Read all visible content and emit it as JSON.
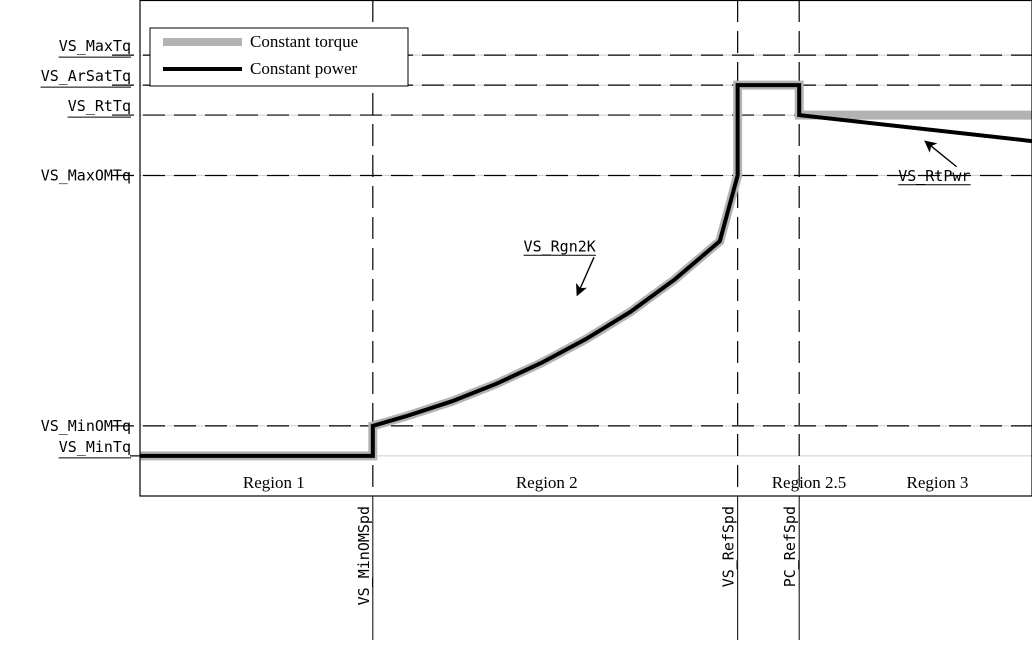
{
  "chart_data": {
    "type": "line",
    "title": "",
    "xlabel": "",
    "ylabel": "",
    "grid": false,
    "legend": {
      "placement": "top-left",
      "entries": [
        {
          "label": "Constant torque",
          "color": "#b3b3b3"
        },
        {
          "label": "Constant power",
          "color": "#000000"
        }
      ]
    },
    "y_levels": [
      {
        "key": "max_tq",
        "label": "VS_MaxTq",
        "value": 100,
        "dashed_line": true
      },
      {
        "key": "arsat_tq",
        "label": "VS_ArSatTq",
        "value": 93.2,
        "dashed_line": true
      },
      {
        "key": "rt_tq",
        "label": "VS_RtTq",
        "value": 86.4,
        "dashed_line": true
      },
      {
        "key": "max_om_tq",
        "label": "VS_MaxOMTq",
        "value": 72.7,
        "dashed_line": true
      },
      {
        "key": "min_om_tq",
        "label": "VS_MinOMTq",
        "value": 15.9,
        "dashed_line": true
      },
      {
        "key": "min_tq",
        "label": "VS_MinTq",
        "value": 9.1,
        "dashed_line": false
      }
    ],
    "x_markers": [
      {
        "key": "min_om_spd",
        "label": "VS_MinOMSpd",
        "value": 26.1
      },
      {
        "key": "ref_spd",
        "label": "VS_RefSpd",
        "value": 67.0
      },
      {
        "key": "pc_ref_spd",
        "label": "PC_RefSpd",
        "value": 73.9
      }
    ],
    "regions": [
      {
        "label": "Region 1",
        "x_center": 15.0
      },
      {
        "label": "Region 2",
        "x_center": 45.6
      },
      {
        "label": "Region 2.5",
        "x_center": 75.0
      },
      {
        "label": "Region 3",
        "x_center": 89.4
      }
    ],
    "annotations": [
      {
        "label": "VS_Rgn2K",
        "text_x": 43.0,
        "text_y": 55.5,
        "arrow_to_x": 49.0,
        "arrow_to_y": 45.5
      },
      {
        "label": "VS_RtPwr",
        "text_x": 85.0,
        "text_y": 71.5,
        "arrow_to_x": 88.0,
        "arrow_to_y": 80.5
      }
    ],
    "xlim": [
      0,
      100
    ],
    "ylim": [
      0,
      112.5
    ],
    "series": [
      {
        "name": "Constant torque",
        "color": "#b3b3b3",
        "x": [
          0,
          26.1,
          26.1,
          30,
          35,
          40,
          45,
          50,
          55,
          60,
          65,
          67.0,
          67.0,
          73.9,
          73.9,
          100
        ],
        "y": [
          9.1,
          9.1,
          15.9,
          18.2,
          21.5,
          25.5,
          30.2,
          35.6,
          41.8,
          49.2,
          57.8,
          72.7,
          93.2,
          93.2,
          86.4,
          86.4
        ]
      },
      {
        "name": "Constant power",
        "color": "#000000",
        "x": [
          0,
          26.1,
          26.1,
          30,
          35,
          40,
          45,
          50,
          55,
          60,
          65,
          67.0,
          67.0,
          73.9,
          73.9,
          100
        ],
        "y": [
          9.1,
          9.1,
          15.9,
          18.2,
          21.5,
          25.5,
          30.2,
          35.6,
          41.8,
          49.2,
          57.8,
          72.7,
          93.2,
          93.2,
          86.4,
          80.5
        ]
      }
    ]
  }
}
